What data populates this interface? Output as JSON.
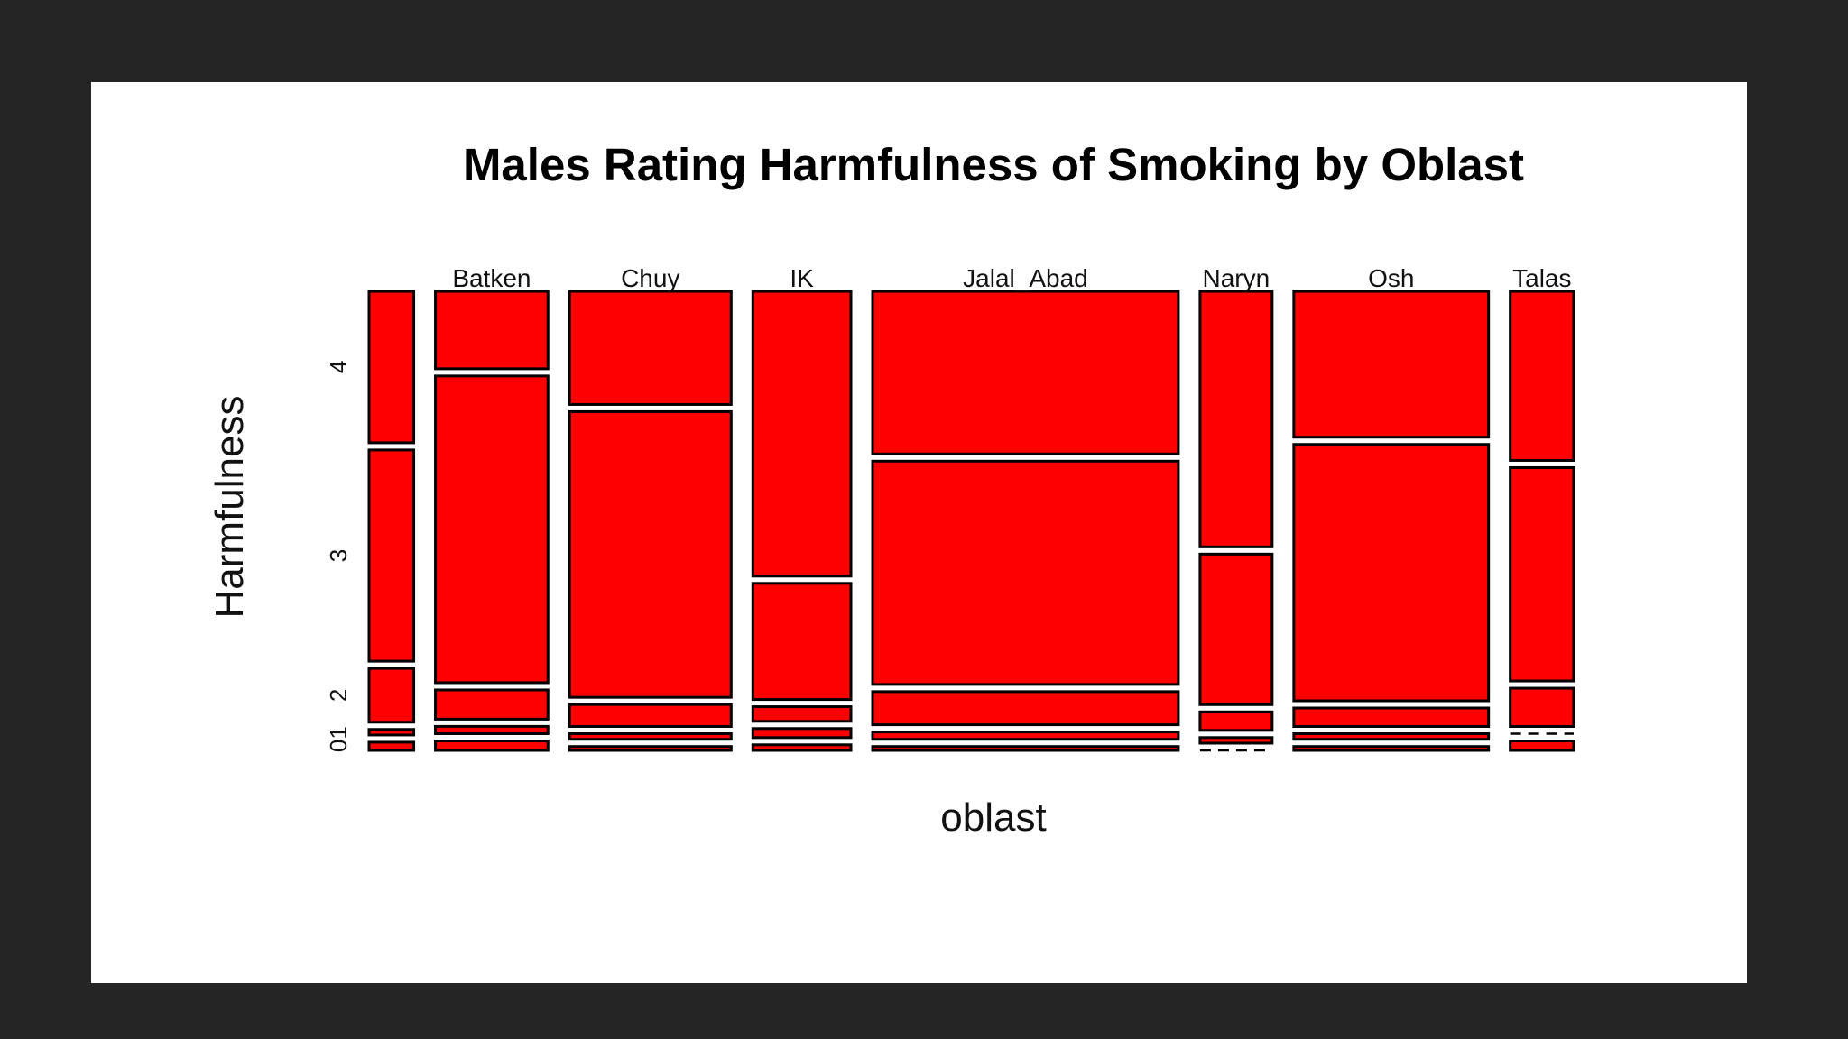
{
  "chart_data": {
    "type": "mosaic",
    "title": "Males Rating Harmfulness of Smoking by Oblast",
    "xlabel": "oblast",
    "ylabel": "Harmfulness",
    "fill_color": "#ff0000",
    "levels": [
      "0",
      "1",
      "2",
      "3",
      "4"
    ],
    "ytick_labels": [
      "01",
      "2",
      "3",
      "4"
    ],
    "columns": [
      {
        "name": "",
        "width": 0.031,
        "proportions": [
          0.019,
          0.013,
          0.125,
          0.491,
          0.352
        ]
      },
      {
        "name": "Batken",
        "width": 0.078,
        "proportions": [
          0.022,
          0.017,
          0.068,
          0.713,
          0.18
        ]
      },
      {
        "name": "Chuy",
        "width": 0.112,
        "proportions": [
          0.009,
          0.013,
          0.051,
          0.664,
          0.263
        ]
      },
      {
        "name": "IK",
        "width": 0.068,
        "proportions": [
          0.013,
          0.021,
          0.034,
          0.27,
          0.662
        ]
      },
      {
        "name": "Jalal_Abad",
        "width": 0.212,
        "proportions": [
          0.009,
          0.017,
          0.077,
          0.519,
          0.378
        ]
      },
      {
        "name": "Naryn",
        "width": 0.05,
        "proportions": [
          0.0,
          0.013,
          0.043,
          0.35,
          0.594
        ]
      },
      {
        "name": "Osh",
        "width": 0.135,
        "proportions": [
          0.009,
          0.013,
          0.043,
          0.596,
          0.339
        ]
      },
      {
        "name": "Talas",
        "width": 0.044,
        "proportions": [
          0.022,
          0.0,
          0.089,
          0.496,
          0.393
        ]
      }
    ]
  }
}
